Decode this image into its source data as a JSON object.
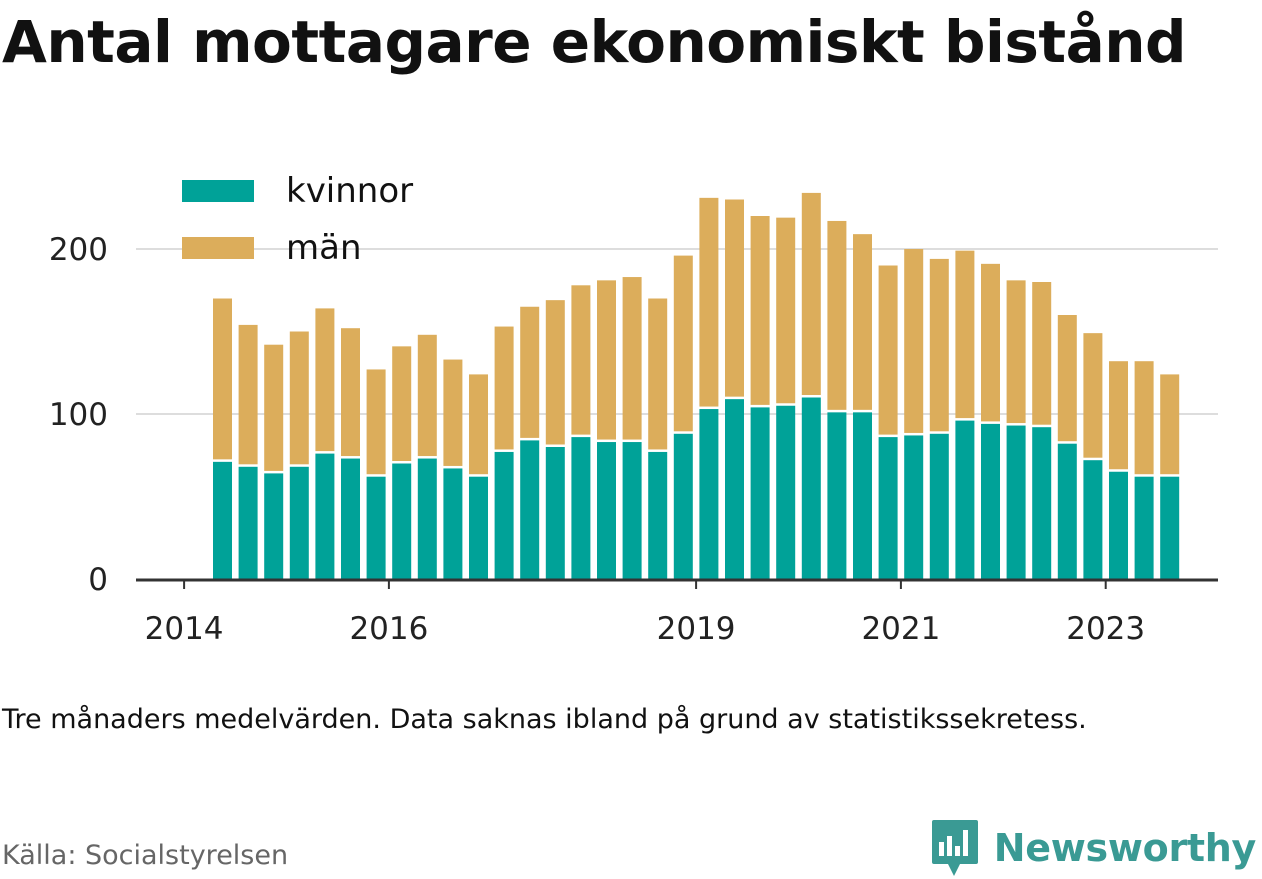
{
  "title": "Antal mottagare ekonomiskt bistånd",
  "note": "Tre månaders medelvärden. Data saknas ibland på grund av statistikssekretess.",
  "source": "Källa: Socialstyrelsen",
  "brand": {
    "name": "Newsworthy",
    "icon": "newsworthy-logo-icon"
  },
  "colors": {
    "kvinnor": "#00a298",
    "man": "#dcad5b",
    "grid": "#dddddd",
    "axis": "#333333"
  },
  "chart_data": {
    "type": "bar",
    "stacked": true,
    "legend": {
      "placement": "top-left",
      "entries": [
        "kvinnor",
        "män"
      ]
    },
    "ylim": [
      0,
      240
    ],
    "yticks": [
      0,
      100,
      200
    ],
    "grid": true,
    "xticks": [
      "2014",
      "2016",
      "2019",
      "2021",
      "2023"
    ],
    "categories": [
      "2014-Q2",
      "2014-Q3",
      "2014-Q4",
      "2015-Q1",
      "2015-Q2",
      "2015-Q3",
      "2015-Q4",
      "2016-Q1",
      "2016-Q2",
      "2016-Q3",
      "2016-Q4",
      "2017-Q1",
      "2017-Q2",
      "2017-Q3",
      "2017-Q4",
      "2018-Q1",
      "2018-Q2",
      "2018-Q3",
      "2018-Q4",
      "2019-Q1",
      "2019-Q2",
      "2019-Q3",
      "2019-Q4",
      "2020-Q1",
      "2020-Q2",
      "2020-Q3",
      "2020-Q4",
      "2021-Q1",
      "2021-Q2",
      "2021-Q3",
      "2021-Q4",
      "2022-Q1",
      "2022-Q2",
      "2022-Q3",
      "2022-Q4",
      "2023-Q1",
      "2023-Q2",
      "2023-Q3"
    ],
    "series": [
      {
        "name": "kvinnor",
        "values": [
          71,
          68,
          64,
          68,
          76,
          73,
          62,
          70,
          73,
          67,
          62,
          77,
          84,
          80,
          86,
          83,
          83,
          77,
          88,
          103,
          109,
          104,
          105,
          110,
          101,
          101,
          86,
          87,
          88,
          96,
          94,
          93,
          92,
          82,
          72,
          65,
          62,
          62
        ]
      },
      {
        "name": "män",
        "values": [
          99,
          86,
          78,
          82,
          88,
          79,
          65,
          71,
          75,
          66,
          62,
          76,
          81,
          89,
          92,
          98,
          100,
          93,
          108,
          128,
          121,
          116,
          114,
          124,
          116,
          108,
          104,
          113,
          106,
          103,
          97,
          88,
          88,
          78,
          77,
          67,
          70,
          62
        ]
      }
    ]
  }
}
